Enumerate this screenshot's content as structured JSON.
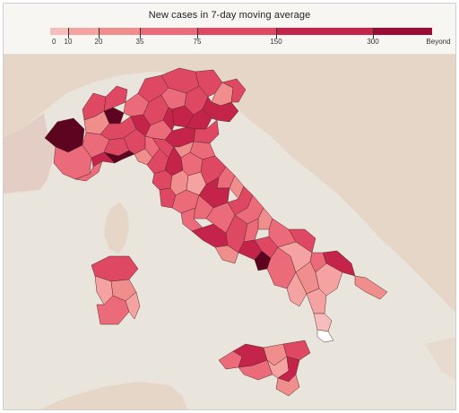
{
  "legend": {
    "title": "New cases in 7-day moving average",
    "bins": [
      {
        "label": "0",
        "color": "#f7bcbc"
      },
      {
        "label": "10",
        "color": "#f5a2a2"
      },
      {
        "label": "20",
        "color": "#f08e8e"
      },
      {
        "label": "35",
        "color": "#eb6b7a"
      },
      {
        "label": "75",
        "color": "#df4863"
      },
      {
        "label": "150",
        "color": "#c4234a"
      },
      {
        "label": "300",
        "color": "#9b0b33"
      },
      {
        "label": "Beyond",
        "color": "#5c0420"
      }
    ]
  },
  "colors": {
    "sea": "#e9e5dc",
    "land_foreign": "#e6d6c8",
    "land_france": "#e3cdc4",
    "province_border": "#5a2a2a",
    "no_data": "#ffffff"
  }
}
